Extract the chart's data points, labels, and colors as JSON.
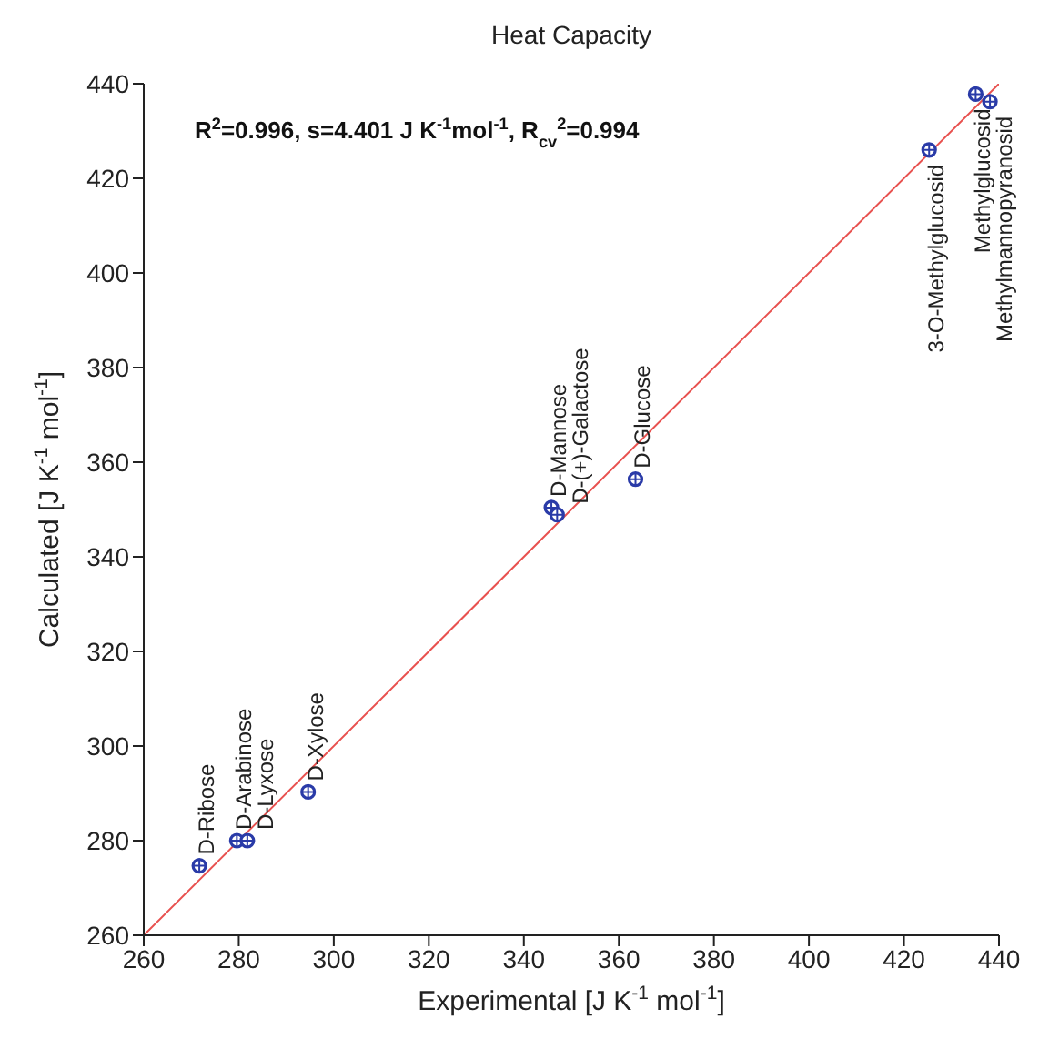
{
  "chart_data": {
    "type": "scatter",
    "title": "Heat Capacity",
    "xlabel": "Experimental [J K$^{-1}$ mol$^{-1}$]",
    "ylabel": "Calculated [J K$^{-1}$ mol$^{-1}$]",
    "xlim": [
      260,
      440
    ],
    "xticks": [
      260,
      280,
      300,
      320,
      340,
      360,
      380,
      400,
      420,
      440
    ],
    "ylim": [
      260,
      440
    ],
    "yticks": [
      260,
      280,
      300,
      320,
      340,
      360,
      380,
      400,
      420,
      440
    ],
    "marker": "circle",
    "series": [
      {
        "color": "#2a3ba8",
        "x": [
          271.7,
          279.6,
          281.8,
          294.6,
          345.8,
          347,
          363.5,
          425.3,
          435.1,
          438.1
        ],
        "values": [
          274.7,
          280,
          280,
          290.3,
          350.4,
          348.9,
          356.4,
          426,
          437.8,
          436.2
        ]
      },
      {
        "type": "line",
        "marker": "none",
        "color": "#e8514f",
        "x": [
          260,
          440
        ],
        "values": [
          260,
          440
        ]
      }
    ],
    "annotations": [
      "R$^{2}$=0.996, s=4.401 J K$^{-1}$mol$^{-1}$, R$_{cv}$$^{2}$=0.994",
      {
        "text": "D-Ribose",
        "x": 271.7,
        "y": 274.7
      },
      {
        "text": "D-Arabinose",
        "x": 279.6,
        "y": 280
      },
      {
        "text": "D-Lyxose",
        "x": 281.8,
        "y": 280
      },
      {
        "text": "D-Xylose",
        "x": 294.6,
        "y": 290.3
      },
      {
        "text": "D-Mannose",
        "x": 345.8,
        "y": 350.4
      },
      {
        "text": "D-(+)-Galactose",
        "x": 347,
        "y": 348.9
      },
      {
        "text": "D-Glucose",
        "x": 363.5,
        "y": 356.4
      },
      {
        "text": "3-O-Methylglucosid",
        "x": 425.3,
        "y": 426
      },
      {
        "text": "Methylglucosid",
        "x": 435.1,
        "y": 437.8
      },
      {
        "text": "Methylmannopyranosid",
        "x": 438.1,
        "y": 436.2
      }
    ]
  }
}
